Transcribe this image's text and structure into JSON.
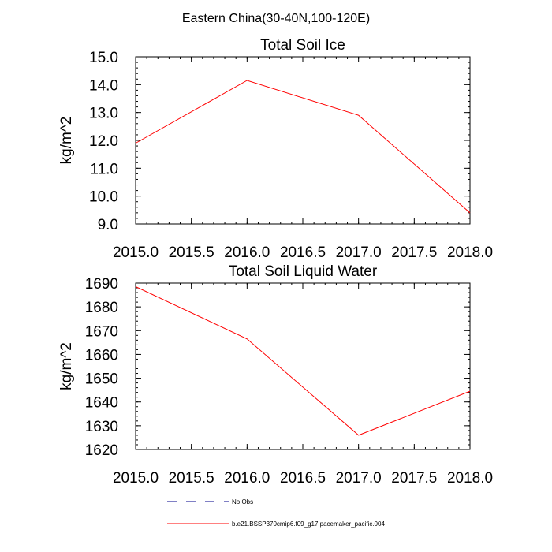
{
  "page_title": "Eastern China(30-40N,100-120E)",
  "chart_data": [
    {
      "type": "line",
      "title": "Total Soil Ice",
      "xlabel": "",
      "ylabel": "kg/m^2",
      "xlim": [
        2015.0,
        2018.0
      ],
      "ylim": [
        9.0,
        15.0
      ],
      "xticks": [
        "2015.0",
        "2015.5",
        "2016.0",
        "2016.5",
        "2017.0",
        "2017.5",
        "2018.0"
      ],
      "xtick_values": [
        2015.0,
        2015.5,
        2016.0,
        2016.5,
        2017.0,
        2017.5,
        2018.0
      ],
      "yticks": [
        "9.0",
        "10.0",
        "11.0",
        "12.0",
        "13.0",
        "14.0",
        "15.0"
      ],
      "ytick_values": [
        9,
        10,
        11,
        12,
        13,
        14,
        15
      ],
      "series": [
        {
          "name": "b.e21.BSSP370cmip6.f09_g17.pacemaker_pacific.004",
          "color": "#ff0000",
          "x": [
            2015.0,
            2016.0,
            2017.0,
            2018.0
          ],
          "values": [
            11.9,
            14.15,
            12.9,
            9.4
          ]
        }
      ]
    },
    {
      "type": "line",
      "title": "Total Soil Liquid Water",
      "xlabel": "",
      "ylabel": "kg/m^2",
      "xlim": [
        2015.0,
        2018.0
      ],
      "ylim": [
        1620,
        1690
      ],
      "xticks": [
        "2015.0",
        "2015.5",
        "2016.0",
        "2016.5",
        "2017.0",
        "2017.5",
        "2018.0"
      ],
      "xtick_values": [
        2015.0,
        2015.5,
        2016.0,
        2016.5,
        2017.0,
        2017.5,
        2018.0
      ],
      "yticks": [
        "1620",
        "1630",
        "1640",
        "1650",
        "1660",
        "1670",
        "1680",
        "1690"
      ],
      "ytick_values": [
        1620,
        1630,
        1640,
        1650,
        1660,
        1670,
        1680,
        1690
      ],
      "series": [
        {
          "name": "b.e21.BSSP370cmip6.f09_g17.pacemaker_pacific.004",
          "color": "#ff0000",
          "x": [
            2015.0,
            2016.0,
            2017.0,
            2018.0
          ],
          "values": [
            1688.5,
            1666.5,
            1626.0,
            1644.5
          ]
        }
      ]
    }
  ],
  "legend": [
    {
      "label": "No Obs",
      "color": "#00008b",
      "style": "dashed"
    },
    {
      "label": "b.e21.BSSP370cmip6.f09_g17.pacemaker_pacific.004",
      "color": "#ff0000",
      "style": "solid"
    }
  ]
}
